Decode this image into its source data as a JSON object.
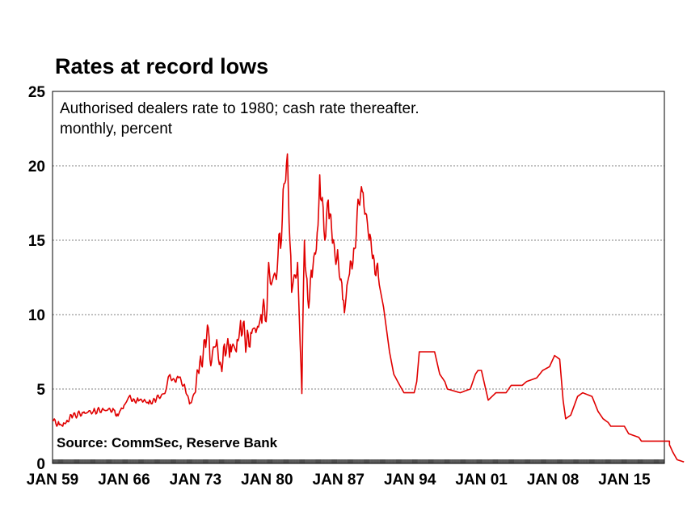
{
  "chart_data": {
    "type": "line",
    "title": "Rates at record lows",
    "notes": [
      "Authorised dealers rate to 1980; cash rate thereafter.",
      "monthly, percent"
    ],
    "source": "Source: CommSec, Reserve Bank",
    "ylim": [
      0,
      25
    ],
    "yticks": [
      "0",
      "5",
      "10",
      "15",
      "20",
      "25"
    ],
    "xlim": [
      "1959-01",
      "2018-12"
    ],
    "xticks": [
      {
        "label": "JAN 59",
        "x": "1959-01"
      },
      {
        "label": "JAN 66",
        "x": "1966-01"
      },
      {
        "label": "JAN 73",
        "x": "1973-01"
      },
      {
        "label": "JAN 80",
        "x": "1980-01"
      },
      {
        "label": "JAN 87",
        "x": "1987-01"
      },
      {
        "label": "JAN 94",
        "x": "1994-01"
      },
      {
        "label": "JAN 01",
        "x": "2001-01"
      },
      {
        "label": "JAN 08",
        "x": "2008-01"
      },
      {
        "label": "JAN 15",
        "x": "2015-01"
      }
    ],
    "grid": true,
    "series_color": "#e00000",
    "series": [
      {
        "points": [
          [
            "1959-01",
            2.9
          ],
          [
            "1959-09",
            2.6
          ],
          [
            "1960-01",
            2.5
          ],
          [
            "1960-06",
            2.9
          ],
          [
            "1961-01",
            3.2
          ],
          [
            "1962-01",
            3.4
          ],
          [
            "1963-01",
            3.5
          ],
          [
            "1964-01",
            3.6
          ],
          [
            "1965-01",
            3.6
          ],
          [
            "1965-06",
            3.2
          ],
          [
            "1965-09",
            3.6
          ],
          [
            "1966-01",
            3.9
          ],
          [
            "1966-06",
            4.4
          ],
          [
            "1967-01",
            4.3
          ],
          [
            "1967-06",
            4.2
          ],
          [
            "1968-01",
            4.3
          ],
          [
            "1968-06",
            4.0
          ],
          [
            "1969-01",
            4.3
          ],
          [
            "1970-01",
            4.7
          ],
          [
            "1970-06",
            5.9
          ],
          [
            "1971-01",
            5.5
          ],
          [
            "1971-06",
            5.8
          ],
          [
            "1972-01",
            5.0
          ],
          [
            "1972-06",
            4.0
          ],
          [
            "1973-01",
            4.8
          ],
          [
            "1973-06",
            6.8
          ],
          [
            "1974-01",
            7.8
          ],
          [
            "1974-03",
            9.3
          ],
          [
            "1974-06",
            7.0
          ],
          [
            "1975-01",
            7.9
          ],
          [
            "1975-06",
            6.8
          ],
          [
            "1976-01",
            7.4
          ],
          [
            "1976-06",
            8.0
          ],
          [
            "1977-01",
            7.5
          ],
          [
            "1977-06",
            9.6
          ],
          [
            "1978-01",
            8.0
          ],
          [
            "1978-06",
            8.8
          ],
          [
            "1979-01",
            9.0
          ],
          [
            "1979-06",
            10.0
          ],
          [
            "1980-01",
            10.3
          ],
          [
            "1980-03",
            13.5
          ],
          [
            "1980-06",
            12.0
          ],
          [
            "1981-01",
            13.0
          ],
          [
            "1981-03",
            15.4
          ],
          [
            "1981-06",
            15.0
          ],
          [
            "1981-09",
            18.8
          ],
          [
            "1982-01",
            20.8
          ],
          [
            "1982-06",
            11.5
          ],
          [
            "1983-01",
            13.5
          ],
          [
            "1983-06",
            4.7
          ],
          [
            "1983-09",
            15.0
          ],
          [
            "1984-01",
            11.0
          ],
          [
            "1984-06",
            12.5
          ],
          [
            "1985-01",
            16.0
          ],
          [
            "1985-03",
            19.4
          ],
          [
            "1985-09",
            15.0
          ],
          [
            "1986-01",
            17.7
          ],
          [
            "1986-06",
            14.8
          ],
          [
            "1987-01",
            13.5
          ],
          [
            "1987-06",
            11.0
          ],
          [
            "1987-09",
            10.6
          ],
          [
            "1988-01",
            12.5
          ],
          [
            "1988-06",
            13.5
          ],
          [
            "1989-01",
            17.5
          ],
          [
            "1989-06",
            18.2
          ],
          [
            "1990-01",
            15.0
          ],
          [
            "1990-06",
            14.0
          ],
          [
            "1991-01",
            12.0
          ],
          [
            "1991-06",
            10.5
          ],
          [
            "1992-01",
            7.5
          ],
          [
            "1992-06",
            6.0
          ],
          [
            "1993-01",
            5.25
          ],
          [
            "1993-06",
            4.75
          ],
          [
            "1994-06",
            4.75
          ],
          [
            "1994-09",
            5.5
          ],
          [
            "1994-12",
            7.5
          ],
          [
            "1996-06",
            7.5
          ],
          [
            "1996-12",
            6.0
          ],
          [
            "1997-06",
            5.5
          ],
          [
            "1997-09",
            5.0
          ],
          [
            "1998-12",
            4.75
          ],
          [
            "1999-12",
            5.0
          ],
          [
            "2000-06",
            6.0
          ],
          [
            "2000-09",
            6.25
          ],
          [
            "2001-01",
            6.25
          ],
          [
            "2001-06",
            5.0
          ],
          [
            "2001-09",
            4.25
          ],
          [
            "2002-06",
            4.75
          ],
          [
            "2003-06",
            4.75
          ],
          [
            "2003-12",
            5.25
          ],
          [
            "2005-01",
            5.25
          ],
          [
            "2005-06",
            5.5
          ],
          [
            "2006-06",
            5.75
          ],
          [
            "2007-01",
            6.25
          ],
          [
            "2007-09",
            6.5
          ],
          [
            "2008-03",
            7.25
          ],
          [
            "2008-09",
            7.0
          ],
          [
            "2009-01",
            4.25
          ],
          [
            "2009-04",
            3.0
          ],
          [
            "2009-10",
            3.25
          ],
          [
            "2010-06",
            4.5
          ],
          [
            "2010-12",
            4.75
          ],
          [
            "2011-11",
            4.5
          ],
          [
            "2012-06",
            3.5
          ],
          [
            "2012-12",
            3.0
          ],
          [
            "2013-06",
            2.75
          ],
          [
            "2013-09",
            2.5
          ],
          [
            "2015-01",
            2.5
          ],
          [
            "2015-06",
            2.0
          ],
          [
            "2016-06",
            1.75
          ],
          [
            "2016-09",
            1.5
          ],
          [
            "2019-06",
            1.5
          ],
          [
            "2019-06",
            1.25
          ],
          [
            "2019-10",
            0.75
          ],
          [
            "2020-03",
            0.25
          ],
          [
            "2020-11",
            0.1
          ]
        ]
      }
    ]
  }
}
